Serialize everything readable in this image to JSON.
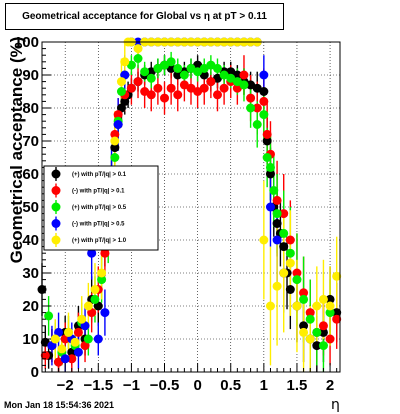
{
  "title": "Geometrical acceptance for Global vs   η at pT > 0.11",
  "timestamp": "Mon Jan 18 15:54:36 2021",
  "chart_data": {
    "type": "scatter",
    "title": "Geometrical acceptance for Global vs   η at pT > 0.11",
    "xlabel": "η",
    "ylabel": "Geometrical acceptance (%)",
    "xlim": [
      -2.35,
      2.15
    ],
    "ylim": [
      0,
      100
    ],
    "grid": true,
    "legend_placement": "center-left",
    "xticks": [
      -2,
      -1.5,
      -1,
      -0.5,
      0,
      0.5,
      1,
      1.5,
      2
    ],
    "xtick_labels": [
      "−2",
      "−1.5",
      "−1",
      "−0.5",
      "0",
      "0.5",
      "1",
      "1.5",
      "2"
    ],
    "yticks": [
      0,
      10,
      20,
      30,
      40,
      50,
      60,
      70,
      80,
      90,
      100
    ],
    "ytick_labels": [
      "0",
      "10",
      "20",
      "30",
      "40",
      "50",
      "60",
      "70",
      "80",
      "90",
      "100"
    ],
    "series": [
      {
        "name": "(+) with pT/|q| > 0.1",
        "color": "#000000",
        "x": [
          -2.35,
          -2.3,
          -2.25,
          -2.2,
          -2.1,
          -2.0,
          -1.9,
          -1.8,
          -1.7,
          -1.6,
          -1.5,
          -1.4,
          -1.35,
          -1.3,
          -1.25,
          -1.2,
          -1.15,
          -1.1,
          -1.05,
          -1.0,
          -0.9,
          -0.8,
          -0.7,
          -0.6,
          -0.5,
          -0.4,
          -0.3,
          -0.2,
          -0.1,
          0.0,
          0.1,
          0.2,
          0.3,
          0.4,
          0.5,
          0.6,
          0.7,
          0.8,
          0.9,
          1.0,
          1.05,
          1.1,
          1.15,
          1.2,
          1.25,
          1.3,
          1.35,
          1.4,
          1.5,
          1.6,
          1.7,
          1.8,
          1.9,
          2.0,
          2.1
        ],
        "y": [
          25,
          9,
          5,
          8,
          3,
          12,
          6,
          14,
          10,
          22,
          20,
          38,
          42,
          55,
          68,
          75,
          80,
          82,
          84,
          86,
          88,
          90,
          91,
          92,
          93,
          92,
          90,
          91,
          92,
          93,
          90,
          88,
          89,
          91,
          91,
          90,
          88,
          87,
          86,
          85,
          70,
          60,
          50,
          45,
          42,
          38,
          30,
          25,
          20,
          14,
          10,
          8,
          12,
          22,
          18
        ],
        "err": [
          8,
          5,
          4,
          5,
          3,
          5,
          4,
          6,
          5,
          7,
          6,
          6,
          6,
          5,
          5,
          4,
          4,
          4,
          4,
          3,
          3,
          3,
          3,
          3,
          3,
          3,
          3,
          3,
          3,
          3,
          3,
          3,
          3,
          3,
          3,
          3,
          4,
          4,
          5,
          6,
          7,
          8,
          9,
          10,
          10,
          11,
          11,
          12,
          11,
          11,
          10,
          9,
          9,
          10,
          9
        ]
      },
      {
        "name": "(-) with pT/|q| > 0.1",
        "color": "#ff0000",
        "x": [
          -2.3,
          -2.2,
          -2.1,
          -2.0,
          -1.9,
          -1.8,
          -1.7,
          -1.6,
          -1.5,
          -1.4,
          -1.35,
          -1.3,
          -1.25,
          -1.2,
          -1.1,
          -1.0,
          -0.9,
          -0.8,
          -0.7,
          -0.6,
          -0.5,
          -0.4,
          -0.3,
          -0.2,
          -0.1,
          0.0,
          0.1,
          0.2,
          0.3,
          0.4,
          0.5,
          0.6,
          0.7,
          0.8,
          0.9,
          1.0,
          1.05,
          1.1,
          1.2,
          1.3,
          1.4,
          1.5,
          1.6,
          1.7,
          1.8,
          1.9,
          2.0,
          2.1
        ],
        "y": [
          5,
          8,
          3,
          10,
          4,
          12,
          8,
          18,
          25,
          36,
          45,
          60,
          72,
          78,
          84,
          86,
          88,
          85,
          84,
          86,
          83,
          86,
          84,
          87,
          86,
          85,
          86,
          88,
          84,
          86,
          88,
          86,
          90,
          83,
          80,
          82,
          72,
          66,
          52,
          48,
          40,
          30,
          24,
          18,
          12,
          14,
          10,
          16
        ],
        "err": [
          4,
          5,
          3,
          5,
          4,
          6,
          5,
          6,
          7,
          7,
          7,
          6,
          6,
          5,
          5,
          5,
          5,
          5,
          5,
          5,
          5,
          5,
          5,
          5,
          5,
          5,
          5,
          5,
          5,
          5,
          5,
          5,
          6,
          7,
          8,
          10,
          10,
          10,
          12,
          12,
          12,
          12,
          11,
          10,
          9,
          9,
          8,
          9
        ]
      },
      {
        "name": "(+) with pT/|q| > 0.5",
        "color": "#00ee00",
        "x": [
          -2.25,
          -2.15,
          -2.05,
          -1.95,
          -1.85,
          -1.75,
          -1.65,
          -1.55,
          -1.45,
          -1.35,
          -1.3,
          -1.25,
          -1.2,
          -1.15,
          -1.1,
          -1.0,
          -0.9,
          -0.8,
          -0.7,
          -0.6,
          -0.5,
          -0.4,
          -0.3,
          -0.2,
          -0.1,
          0.0,
          0.1,
          0.2,
          0.3,
          0.4,
          0.5,
          0.6,
          0.7,
          0.8,
          0.9,
          1.0,
          1.05,
          1.1,
          1.15,
          1.2,
          1.3,
          1.4,
          1.5,
          1.6,
          1.7,
          1.8,
          1.9,
          2.0
        ],
        "y": [
          17,
          10,
          6,
          12,
          8,
          15,
          10,
          22,
          28,
          40,
          58,
          65,
          76,
          85,
          90,
          93,
          95,
          91,
          89,
          92,
          93,
          94,
          92,
          90,
          92,
          91,
          92,
          93,
          92,
          90,
          89,
          88,
          87,
          80,
          75,
          78,
          65,
          62,
          55,
          48,
          42,
          36,
          28,
          22,
          16,
          12,
          8,
          18
        ],
        "err": [
          6,
          5,
          4,
          5,
          4,
          6,
          5,
          7,
          7,
          7,
          6,
          6,
          5,
          5,
          4,
          3,
          3,
          3,
          3,
          3,
          3,
          3,
          3,
          3,
          3,
          3,
          3,
          3,
          3,
          3,
          3,
          4,
          5,
          6,
          7,
          8,
          9,
          10,
          11,
          12,
          13,
          14,
          14,
          13,
          12,
          10,
          9,
          10
        ]
      },
      {
        "name": "(-) with pT/|q| > 0.5",
        "color": "#0000ff",
        "x": [
          -2.2,
          -2.1,
          -2.0,
          -1.9,
          -1.8,
          -1.7,
          -1.6,
          -1.5,
          -1.4,
          -1.3,
          -1.2,
          -1.1,
          -1.0,
          -0.9,
          -0.8,
          -0.7,
          -0.6,
          -0.5,
          -0.4,
          -0.3,
          -0.2,
          -0.1,
          0.0,
          0.1,
          0.2,
          0.3,
          0.4,
          0.5,
          0.6,
          0.7,
          0.8,
          0.9,
          1.0,
          1.1,
          1.2,
          1.3
        ],
        "y": [
          8,
          12,
          4,
          10,
          6,
          14,
          36,
          10,
          18,
          60,
          75,
          90,
          100,
          100,
          100,
          100,
          100,
          100,
          100,
          100,
          100,
          100,
          100,
          100,
          100,
          100,
          100,
          100,
          100,
          100,
          100,
          100,
          90,
          50,
          40,
          30
        ],
        "err": [
          6,
          6,
          4,
          5,
          5,
          6,
          8,
          5,
          7,
          8,
          8,
          6,
          0,
          0,
          0,
          0,
          0,
          0,
          0,
          0,
          0,
          0,
          0,
          0,
          0,
          0,
          0,
          0,
          0,
          0,
          0,
          0,
          6,
          12,
          13,
          12
        ]
      },
      {
        "name": "(+) with pT/|q| > 1.0",
        "color": "#ffee00",
        "x": [
          -2.15,
          -2.05,
          -1.95,
          -1.85,
          -1.75,
          -1.65,
          -1.55,
          -1.45,
          -1.35,
          -1.25,
          -1.15,
          -1.1,
          -1.05,
          -1.0,
          -0.9,
          -0.8,
          -0.7,
          -0.6,
          -0.5,
          -0.4,
          -0.3,
          -0.2,
          -0.1,
          0.0,
          0.1,
          0.2,
          0.3,
          0.4,
          0.5,
          0.6,
          0.7,
          0.8,
          0.9,
          1.0,
          1.1,
          1.2,
          1.3,
          1.4,
          1.5,
          1.6,
          1.7,
          1.8,
          1.9,
          2.0,
          2.1
        ],
        "y": [
          10,
          7,
          12,
          9,
          16,
          20,
          25,
          30,
          45,
          70,
          88,
          94,
          100,
          100,
          98,
          100,
          100,
          100,
          100,
          100,
          100,
          100,
          100,
          100,
          100,
          100,
          100,
          100,
          100,
          100,
          100,
          100,
          100,
          40,
          20,
          26,
          30,
          33,
          20,
          12,
          10,
          20,
          22,
          20,
          29
        ],
        "err": [
          6,
          5,
          6,
          5,
          7,
          7,
          8,
          8,
          9,
          9,
          7,
          6,
          0,
          0,
          3,
          0,
          0,
          0,
          0,
          0,
          0,
          0,
          0,
          0,
          0,
          0,
          0,
          0,
          0,
          0,
          0,
          0,
          0,
          18,
          18,
          18,
          18,
          16,
          14,
          12,
          10,
          12,
          12,
          12,
          12
        ]
      }
    ]
  }
}
